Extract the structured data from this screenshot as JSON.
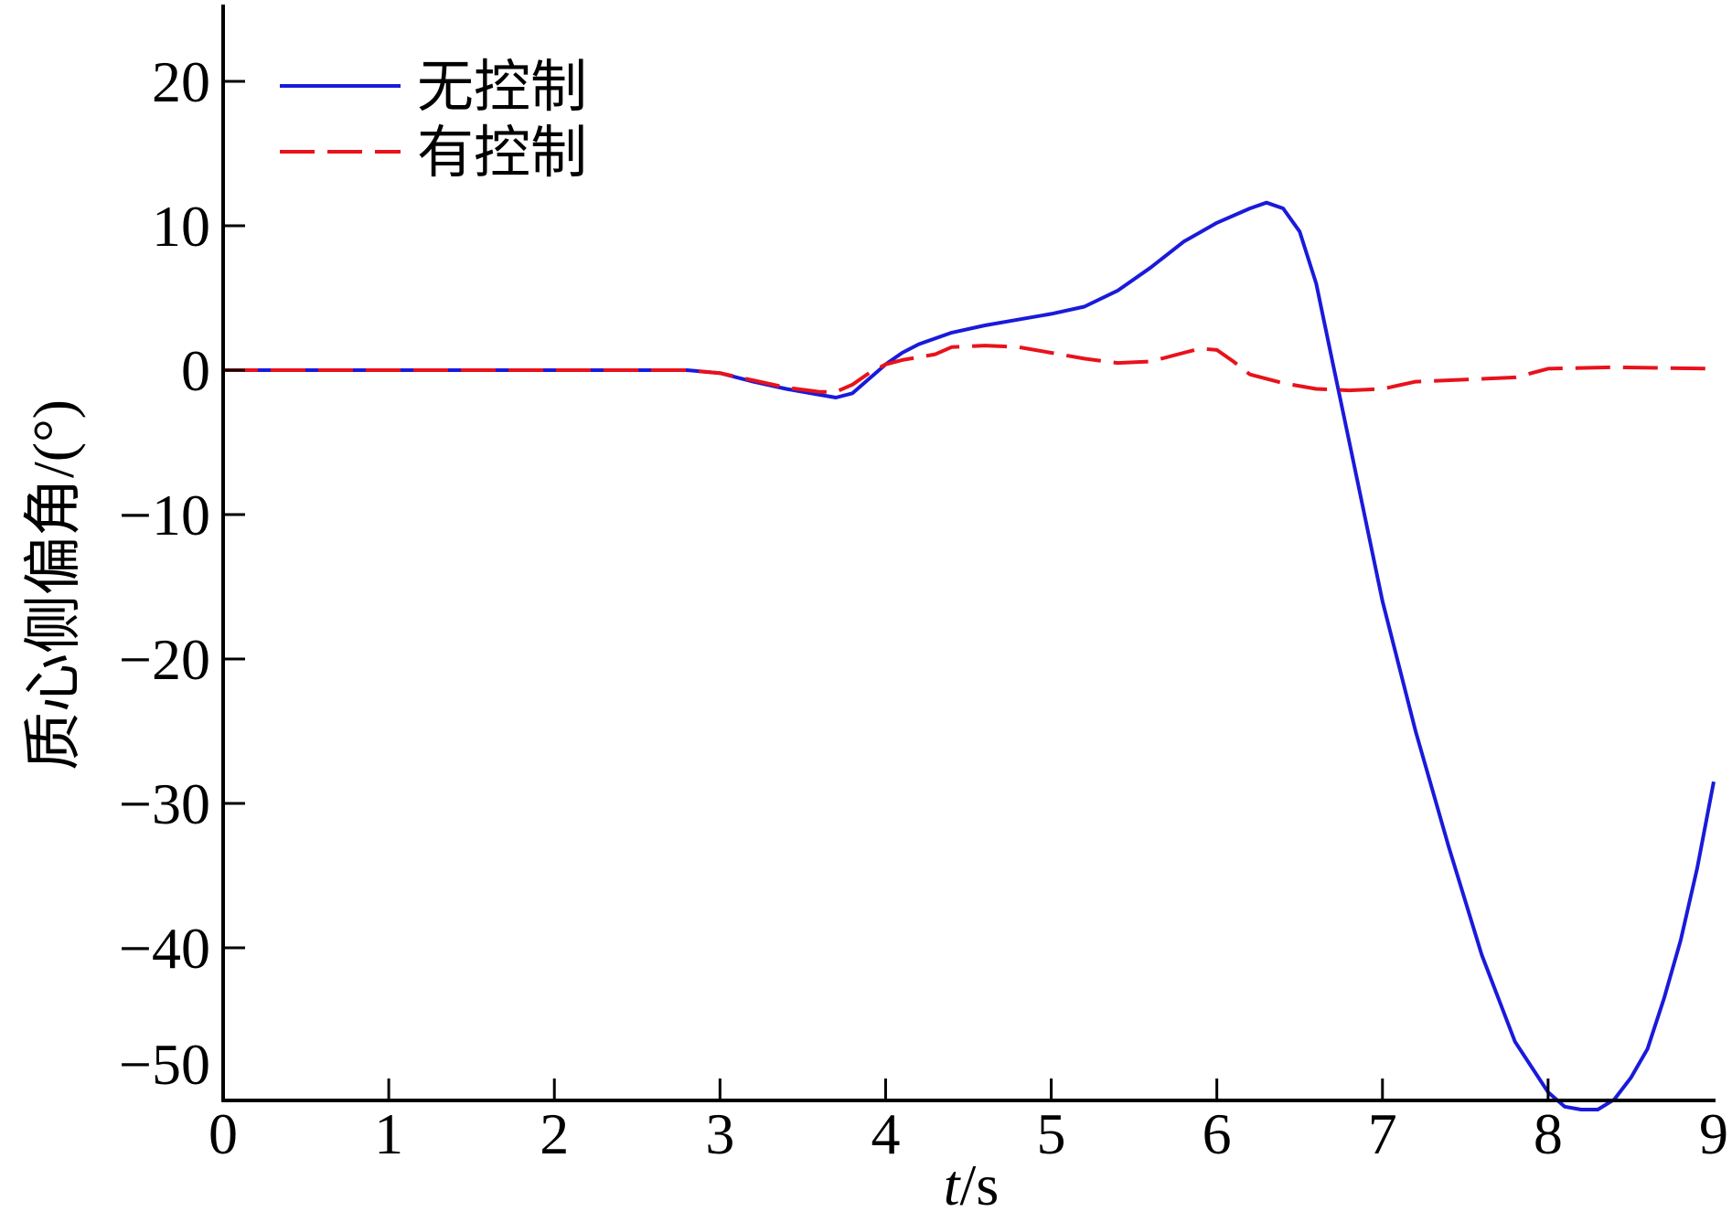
{
  "chart_data": {
    "type": "line",
    "xlabel": {
      "italic": "t",
      "rest": "/s"
    },
    "ylabel": "质心侧偏角/(°)",
    "xlim": [
      0,
      9
    ],
    "ylim": [
      -50,
      25
    ],
    "xticks": [
      0,
      1,
      2,
      3,
      4,
      5,
      6,
      7,
      8,
      9
    ],
    "yticks": [
      20,
      10,
      0,
      -10,
      -20,
      -30,
      -40,
      -50
    ],
    "ytick_labels": [
      "20",
      "10",
      "0",
      "−10",
      "−20",
      "−30",
      "−40",
      "−50"
    ],
    "grid": false,
    "legend_position": "top-left",
    "series": [
      {
        "name": "无控制",
        "color": "#1a1adb",
        "style": "solid",
        "x": [
          0,
          2.8,
          3.0,
          3.2,
          3.4,
          3.6,
          3.7,
          3.8,
          3.9,
          4.0,
          4.1,
          4.2,
          4.4,
          4.6,
          4.8,
          5.0,
          5.2,
          5.4,
          5.6,
          5.8,
          6.0,
          6.2,
          6.3,
          6.4,
          6.5,
          6.6,
          6.7,
          6.8,
          6.9,
          7.0,
          7.2,
          7.4,
          7.6,
          7.8,
          8.0,
          8.1,
          8.2,
          8.3,
          8.4,
          8.5,
          8.6,
          8.7,
          8.8,
          8.9,
          9.0
        ],
        "y": [
          0,
          0,
          -0.2,
          -0.8,
          -1.3,
          -1.7,
          -1.9,
          -1.6,
          -0.6,
          0.4,
          1.2,
          1.8,
          2.6,
          3.1,
          3.5,
          3.9,
          4.4,
          5.5,
          7.1,
          8.9,
          10.2,
          11.2,
          11.6,
          11.2,
          9.6,
          6.0,
          0.5,
          -5.0,
          -10.5,
          -16.0,
          -25.0,
          -33.0,
          -40.5,
          -46.5,
          -50.0,
          -51.0,
          -51.2,
          -51.2,
          -50.5,
          -49.0,
          -47.0,
          -43.5,
          -39.5,
          -34.5,
          -28.5
        ]
      },
      {
        "name": "有控制",
        "color": "#e8121b",
        "style": "dashed",
        "x": [
          0,
          2.8,
          3.0,
          3.2,
          3.4,
          3.6,
          3.7,
          3.8,
          3.9,
          4.0,
          4.1,
          4.2,
          4.3,
          4.4,
          4.6,
          4.8,
          5.0,
          5.2,
          5.4,
          5.6,
          5.8,
          5.9,
          6.0,
          6.1,
          6.2,
          6.4,
          6.6,
          6.8,
          7.0,
          7.2,
          7.6,
          7.8,
          8.0,
          8.4,
          9.0
        ],
        "y": [
          0,
          0,
          -0.2,
          -0.7,
          -1.2,
          -1.5,
          -1.5,
          -1.0,
          -0.2,
          0.4,
          0.7,
          0.9,
          1.1,
          1.6,
          1.7,
          1.6,
          1.2,
          0.8,
          0.5,
          0.6,
          1.2,
          1.5,
          1.4,
          0.6,
          -0.3,
          -0.9,
          -1.3,
          -1.4,
          -1.3,
          -0.8,
          -0.6,
          -0.5,
          0.1,
          0.2,
          0.1
        ]
      }
    ]
  }
}
